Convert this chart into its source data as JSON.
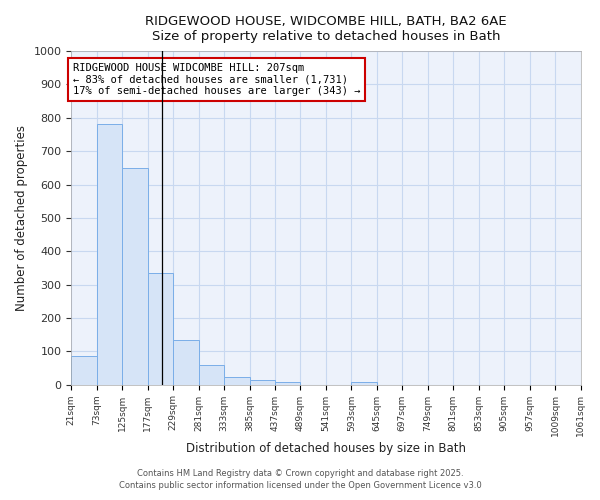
{
  "title_line1": "RIDGEWOOD HOUSE, WIDCOMBE HILL, BATH, BA2 6AE",
  "title_line2": "Size of property relative to detached houses in Bath",
  "xlabel": "Distribution of detached houses by size in Bath",
  "ylabel": "Number of detached properties",
  "bar_color": "#d6e4f7",
  "bar_edge_color": "#7aaee8",
  "plot_bg_color": "#edf2fb",
  "fig_bg_color": "#ffffff",
  "grid_color": "#c8d8f0",
  "bin_edges": [
    21,
    73,
    125,
    177,
    229,
    281,
    333,
    385,
    437,
    489,
    541,
    593,
    645,
    697,
    749,
    801,
    853,
    905,
    957,
    1009,
    1061
  ],
  "bar_heights": [
    85,
    780,
    648,
    335,
    135,
    60,
    22,
    15,
    8,
    0,
    0,
    8,
    0,
    0,
    0,
    0,
    0,
    0,
    0,
    0
  ],
  "property_size": 207,
  "vline_color": "#000000",
  "annotation_text": "RIDGEWOOD HOUSE WIDCOMBE HILL: 207sqm\n← 83% of detached houses are smaller (1,731)\n17% of semi-detached houses are larger (343) →",
  "annotation_box_color": "#ffffff",
  "annotation_box_edge_color": "#cc0000",
  "ylim": [
    0,
    1000
  ],
  "yticks": [
    0,
    100,
    200,
    300,
    400,
    500,
    600,
    700,
    800,
    900,
    1000
  ],
  "footnote1": "Contains HM Land Registry data © Crown copyright and database right 2025.",
  "footnote2": "Contains public sector information licensed under the Open Government Licence v3.0"
}
